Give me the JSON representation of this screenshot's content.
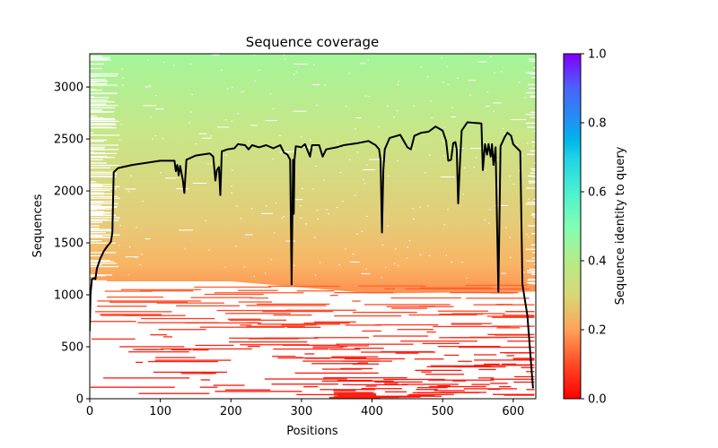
{
  "chart_data": {
    "type": "heatmap",
    "title": "Sequence coverage",
    "xlabel": "Positions",
    "ylabel": "Sequences",
    "xlim": [
      0,
      632
    ],
    "ylim": [
      0,
      3320
    ],
    "grid": false,
    "x_ticks": [
      0,
      100,
      200,
      300,
      400,
      500,
      600
    ],
    "x_tick_labels": [
      "0",
      "100",
      "200",
      "300",
      "400",
      "500",
      "600"
    ],
    "y_ticks": [
      0,
      500,
      1000,
      1500,
      2000,
      2500,
      3000
    ],
    "y_tick_labels": [
      "0",
      "500",
      "1000",
      "1500",
      "2000",
      "2500",
      "3000"
    ],
    "colorbar": {
      "label": "Sequence identity to query",
      "colormap": "rainbow_r",
      "range": [
        0.0,
        1.0
      ],
      "ticks": [
        0.0,
        0.2,
        0.4,
        0.6,
        0.8,
        1.0
      ],
      "tick_labels": [
        "0.0",
        "0.2",
        "0.4",
        "0.6",
        "0.8",
        "1.0"
      ],
      "stops": [
        "#ff0000",
        "#ff7d41",
        "#b4ec88",
        "#4bf0d0",
        "#0d9ff0",
        "#8000ff"
      ]
    },
    "coverage_series": {
      "name": "coverage",
      "color": "#000000",
      "x": [
        0,
        1,
        3,
        6,
        8,
        10,
        15,
        20,
        25,
        30,
        32,
        34,
        40,
        60,
        80,
        100,
        120,
        122,
        124,
        126,
        128,
        132,
        134,
        137,
        150,
        170,
        175,
        178,
        180,
        183,
        185,
        187,
        195,
        205,
        210,
        220,
        225,
        230,
        240,
        250,
        260,
        270,
        275,
        280,
        284,
        286,
        288,
        289,
        290,
        292,
        300,
        305,
        312,
        315,
        325,
        330,
        335,
        350,
        360,
        380,
        395,
        405,
        410,
        412,
        414,
        416,
        418,
        425,
        440,
        450,
        455,
        460,
        470,
        480,
        490,
        500,
        505,
        508,
        512,
        515,
        518,
        520,
        522,
        524,
        527,
        535,
        555,
        557,
        560,
        563,
        565,
        568,
        570,
        572,
        575,
        579,
        582,
        588,
        592,
        597,
        600,
        610,
        613,
        620,
        628
      ],
      "y": [
        650,
        1000,
        1150,
        1160,
        1150,
        1250,
        1350,
        1420,
        1470,
        1510,
        1600,
        2180,
        2220,
        2250,
        2270,
        2290,
        2290,
        2190,
        2250,
        2150,
        2240,
        2100,
        1980,
        2300,
        2340,
        2360,
        2330,
        2100,
        2200,
        2230,
        1960,
        2380,
        2400,
        2410,
        2450,
        2440,
        2400,
        2440,
        2420,
        2440,
        2410,
        2440,
        2370,
        2350,
        2300,
        1100,
        2300,
        1780,
        2300,
        2430,
        2420,
        2450,
        2330,
        2440,
        2440,
        2330,
        2400,
        2420,
        2440,
        2460,
        2480,
        2440,
        2400,
        2300,
        1600,
        2200,
        2400,
        2510,
        2540,
        2420,
        2400,
        2530,
        2560,
        2570,
        2620,
        2580,
        2480,
        2290,
        2300,
        2460,
        2470,
        2400,
        1880,
        2200,
        2580,
        2660,
        2650,
        2200,
        2450,
        2350,
        2450,
        2330,
        2450,
        2250,
        2420,
        1030,
        2430,
        2520,
        2560,
        2530,
        2450,
        2380,
        1100,
        800,
        100
      ]
    },
    "dense_band": {
      "description_values": {
        "upper_sequences": 3320,
        "lower_sequences_left": 1130,
        "lower_sequences_right": 1030
      },
      "identity_top": 0.42,
      "identity_bottom": 0.2
    },
    "sparse_region": {
      "identity_range": [
        0.0,
        0.15
      ],
      "sequences_range": [
        0,
        1100
      ]
    }
  }
}
